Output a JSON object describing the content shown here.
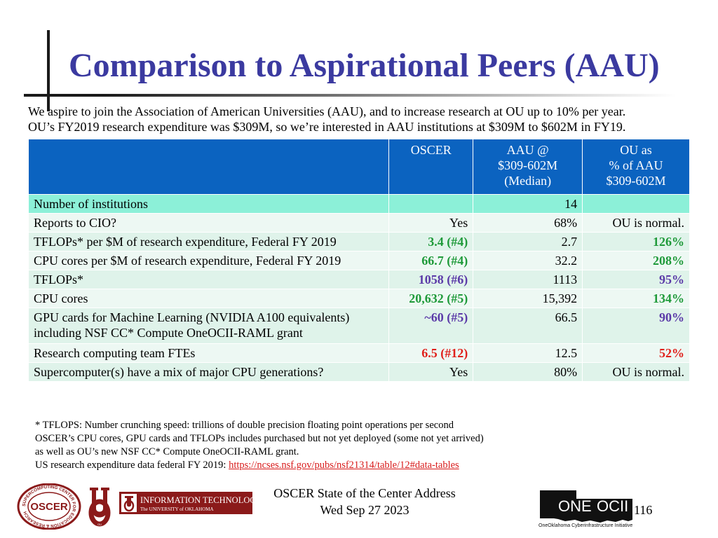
{
  "title": "Comparison to Aspirational Peers (AAU)",
  "intro": {
    "line1": "We aspire to join the Association of American Universities (AAU), and to increase research at OU up to 10% per year.",
    "line2": "OU’s FY2019 research expenditure was $309M, so we’re interested in AAU institutions at $309M to $602M in FY19."
  },
  "table": {
    "headers": [
      {
        "lines": [
          ""
        ]
      },
      {
        "lines": [
          "OSCER"
        ]
      },
      {
        "lines": [
          "AAU @",
          "$309-602M",
          "(Median)"
        ]
      },
      {
        "lines": [
          "OU as",
          "% of AAU",
          "$309-602M"
        ]
      }
    ],
    "rows": [
      {
        "label": "Number of institutions",
        "oscer": "",
        "aau": "14",
        "ou": "",
        "oscer_color": "plain",
        "ou_color": "plain"
      },
      {
        "label": "Reports to CIO?",
        "oscer": "Yes",
        "aau": "68%",
        "ou": "OU is normal.",
        "oscer_color": "plain",
        "ou_color": "plain"
      },
      {
        "label": "TFLOPs*   per $M of research expenditure, Federal FY 2019",
        "oscer": "3.4 (#4)",
        "aau": "2.7",
        "ou": "126%",
        "oscer_color": "green",
        "ou_color": "green"
      },
      {
        "label": "CPU cores per $M of research expenditure, Federal FY 2019",
        "oscer": "66.7 (#4)",
        "aau": "32.2",
        "ou": "208%",
        "oscer_color": "green",
        "ou_color": "green"
      },
      {
        "label": "TFLOPs*",
        "oscer": "1058 (#6)",
        "aau": "1113",
        "ou": "95%",
        "oscer_color": "purple",
        "ou_color": "purple"
      },
      {
        "label": "CPU cores",
        "oscer": "20,632 (#5)",
        "aau": "15,392",
        "ou": "134%",
        "oscer_color": "green",
        "ou_color": "green"
      },
      {
        "label": "GPU cards for Machine Learning (NVIDIA A100 equivalents) including NSF CC* Compute OneOCII-RAML grant",
        "oscer": "~60 (#5)",
        "aau": "66.5",
        "ou": "90%",
        "oscer_color": "purple",
        "ou_color": "purple"
      },
      {
        "label": "Research computing team FTEs",
        "oscer": "6.5 (#12)",
        "aau": "12.5",
        "ou": "52%",
        "oscer_color": "red",
        "ou_color": "red"
      },
      {
        "label": "Supercomputer(s) have a mix of major CPU generations?",
        "oscer": "Yes",
        "aau": "80%",
        "ou": "OU is normal.",
        "oscer_color": "plain",
        "ou_color": "plain"
      }
    ]
  },
  "notes": {
    "n1": "* TFLOPS: Number crunching speed: trillions of double precision floating point operations per second",
    "n2": "OSCER’s CPU cores, GPU cards and TFLOPs includes purchased but not yet deployed (some not yet arrived)",
    "n3": "as well as OU’s new NSF CC* Compute OneOCII-RAML grant.",
    "n4_prefix": "US research expenditure data federal FY 2019: ",
    "n4_link": "https://ncses.nsf.gov/pubs/nsf21314/table/12#data-tables"
  },
  "footer": {
    "line1": "OSCER State of the Center Address",
    "line2": "Wed Sep 27 2023",
    "page_number": "116"
  },
  "logos": {
    "oscer": {
      "center": "OSCER",
      "ring": "SUPERCOMPUTING CENTER FOR EDUCATION & RESEARCH"
    },
    "ou": {
      "mark": "OU"
    },
    "it": {
      "line1": "INFORMATION TECHNOLOGY",
      "line2": "The UNIVERSITY of OKLAHOMA"
    },
    "oneocii": {
      "word1": "ONE",
      "word2": "OCII",
      "tagline": "OneOklahoma Cyberinfrastructure Initiative"
    }
  },
  "colors": {
    "title": "#3b3aa0",
    "header_bg": "#0b63c0",
    "first_row_bg": "#8cf0d8",
    "row_a": "#dff3ea",
    "row_b": "#edf8f3",
    "green": "#1f9a3a",
    "purple": "#5b3aa8",
    "red": "#e0201b",
    "ou_crimson": "#8b1a1a"
  }
}
